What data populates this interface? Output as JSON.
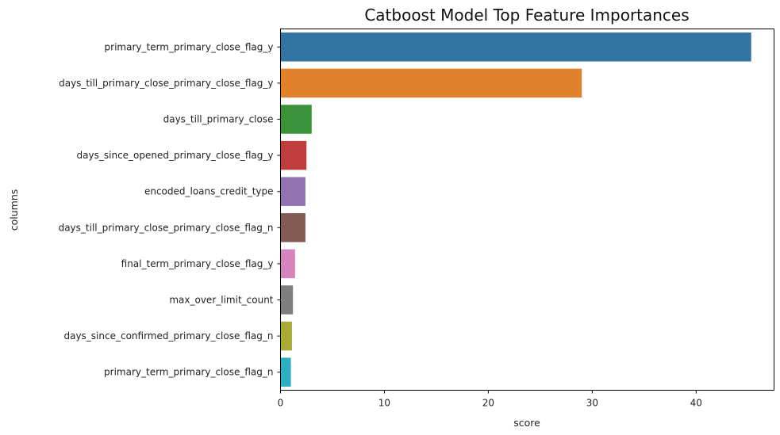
{
  "chart_data": {
    "type": "bar",
    "orientation": "horizontal",
    "title": "Catboost Model Top Feature Importances",
    "xlabel": "score",
    "ylabel": "columns",
    "xlim": [
      0,
      47.5
    ],
    "xticks": [
      0,
      10,
      20,
      30,
      40
    ],
    "grid": false,
    "categories": [
      "primary_term_primary_close_flag_y",
      "days_till_primary_close_primary_close_flag_y",
      "days_till_primary_close",
      "days_since_opened_primary_close_flag_y",
      "encoded_loans_credit_type",
      "days_till_primary_close_primary_close_flag_n",
      "final_term_primary_close_flag_y",
      "max_over_limit_count",
      "days_since_confirmed_primary_close_flag_n",
      "primary_term_primary_close_flag_n"
    ],
    "values": [
      45.3,
      29.0,
      3.0,
      2.5,
      2.4,
      2.4,
      1.4,
      1.2,
      1.1,
      1.0
    ],
    "colors": [
      "#3274a1",
      "#e1812c",
      "#3a923a",
      "#c03d3e",
      "#9372b2",
      "#845b53",
      "#d684bd",
      "#7f7f7f",
      "#a9aa35",
      "#2eb0c0"
    ]
  }
}
